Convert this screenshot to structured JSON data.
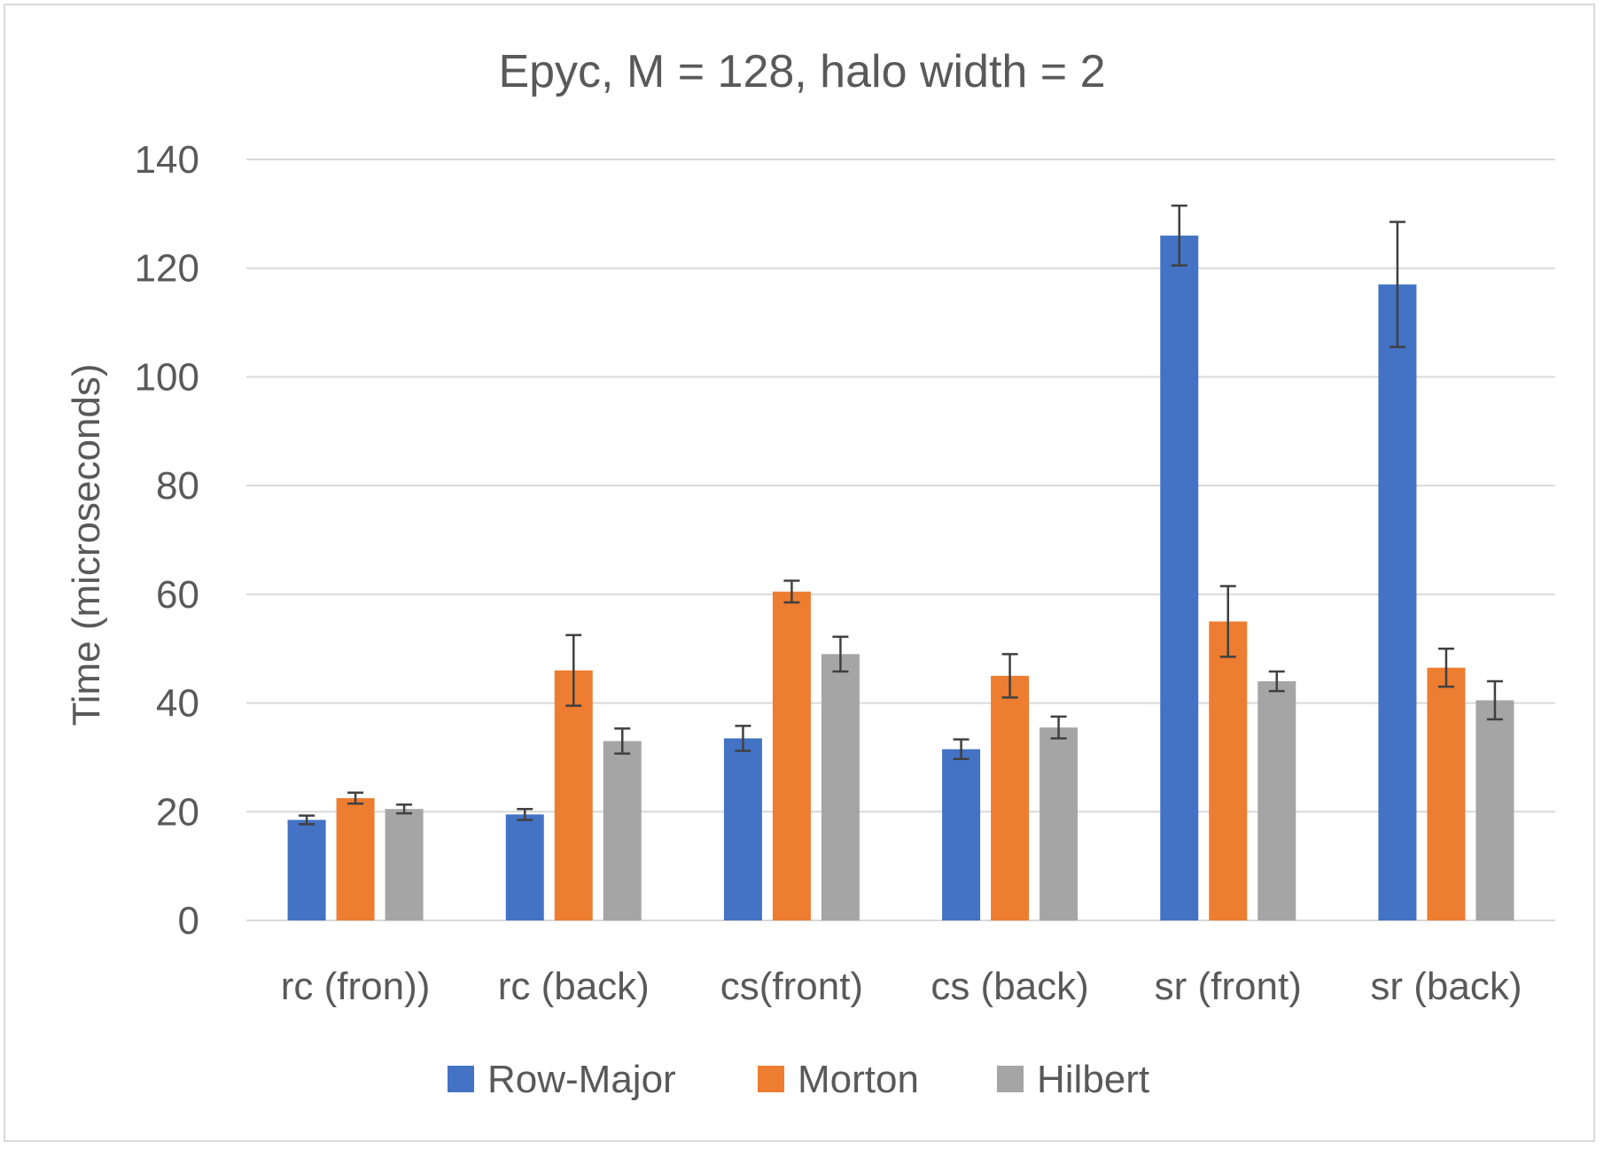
{
  "chart_data": {
    "type": "bar",
    "title": "Epyc, M = 128, halo width = 2",
    "xlabel": "",
    "ylabel": "Time (microseconds)",
    "ylim": [
      0,
      140
    ],
    "yticks": [
      0,
      20,
      40,
      60,
      80,
      100,
      120,
      140
    ],
    "grid": true,
    "legend_position": "bottom",
    "categories": [
      "rc (fron))",
      "rc (back)",
      "cs(front)",
      "cs (back)",
      "sr (front)",
      "sr (back)"
    ],
    "series": [
      {
        "name": "Row-Major",
        "color": "#4472C4",
        "values": [
          18.5,
          19.5,
          33.5,
          31.5,
          126,
          117
        ],
        "error": [
          0.8,
          1.0,
          2.3,
          1.8,
          5.5,
          11.5
        ]
      },
      {
        "name": "Morton",
        "color": "#ED7D31",
        "values": [
          22.5,
          46,
          60.5,
          45,
          55,
          46.5
        ],
        "error": [
          1.0,
          6.5,
          2.0,
          4.0,
          6.5,
          3.5
        ]
      },
      {
        "name": "Hilbert",
        "color": "#A5A5A5",
        "values": [
          20.5,
          33,
          49,
          35.5,
          44,
          40.5
        ],
        "error": [
          0.8,
          2.3,
          3.2,
          2.0,
          1.8,
          3.5
        ]
      }
    ]
  }
}
